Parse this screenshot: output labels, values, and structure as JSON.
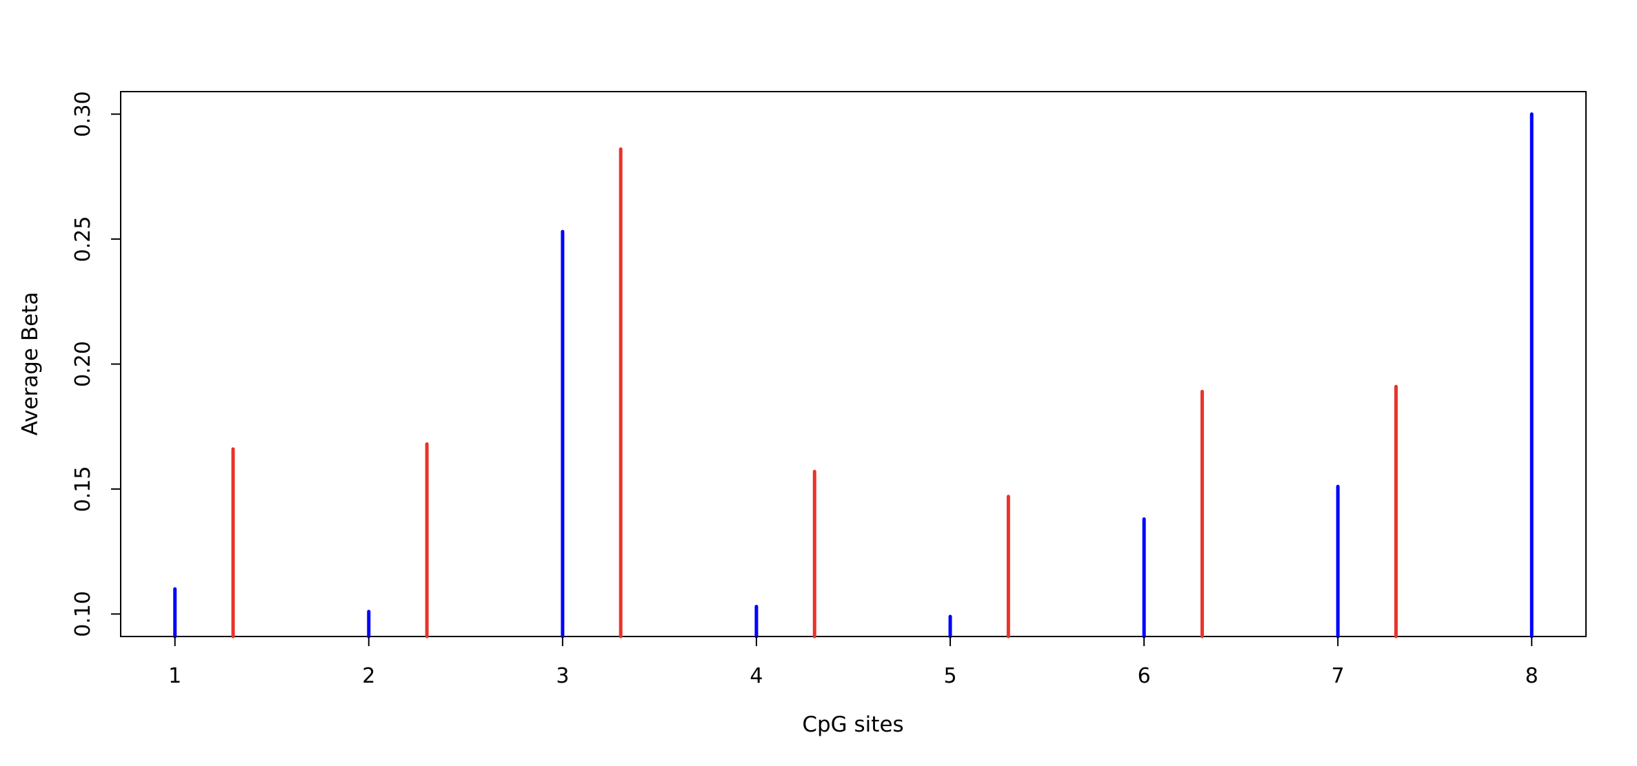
{
  "chart_data": {
    "type": "bar",
    "title": "",
    "xlabel": "CpG sites",
    "ylabel": "Average Beta",
    "x_ticks": [
      "1",
      "2",
      "3",
      "4",
      "5",
      "6",
      "7",
      "8"
    ],
    "y_ticks": [
      "0.10",
      "0.15",
      "0.20",
      "0.25",
      "0.30"
    ],
    "xlim": [
      0.72,
      8.28
    ],
    "ylim": [
      0.091,
      0.309
    ],
    "grid": false,
    "legend": "none",
    "series": [
      {
        "color": "#0000ff",
        "x_offset": 0,
        "values": [
          0.11,
          0.101,
          0.253,
          0.103,
          0.099,
          0.138,
          0.151,
          0.3
        ]
      },
      {
        "color": "#e8332a",
        "x_offset": 0.3,
        "values": [
          0.166,
          0.168,
          0.286,
          0.157,
          0.147,
          0.189,
          0.191,
          null
        ]
      }
    ]
  }
}
